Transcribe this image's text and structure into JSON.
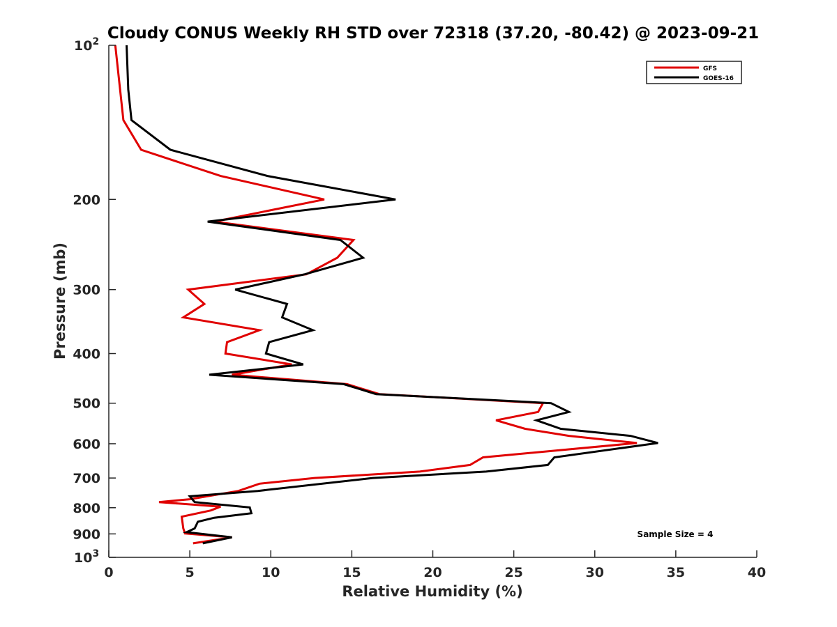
{
  "chart_data": {
    "type": "line",
    "title": "Cloudy CONUS Weekly RH STD over 72318 (37.20, -80.42) @ 2023-09-21",
    "xlabel": "Relative Humidity (%)",
    "ylabel": "Pressure (mb)",
    "xlim": [
      0,
      40
    ],
    "ylim": [
      100,
      1000
    ],
    "yscale": "log",
    "yreversed": true,
    "grid": false,
    "x_ticks": [
      0,
      5,
      10,
      15,
      20,
      25,
      30,
      35,
      40
    ],
    "x_tick_labels": [
      "0",
      "5",
      "10",
      "15",
      "20",
      "25",
      "30",
      "35",
      "40"
    ],
    "y_ticks": [
      100,
      200,
      300,
      400,
      500,
      600,
      700,
      800,
      900,
      1000
    ],
    "y_tick_labels": [
      {
        "base": "10",
        "exp": "2"
      },
      {
        "base": "200",
        "exp": ""
      },
      {
        "base": "300",
        "exp": ""
      },
      {
        "base": "400",
        "exp": ""
      },
      {
        "base": "500",
        "exp": ""
      },
      {
        "base": "600",
        "exp": ""
      },
      {
        "base": "700",
        "exp": ""
      },
      {
        "base": "800",
        "exp": ""
      },
      {
        "base": "900",
        "exp": ""
      },
      {
        "base": "10",
        "exp": "3"
      }
    ],
    "legend": {
      "position": "top-right",
      "entries": [
        {
          "name": "GFS",
          "color": "#e00000"
        },
        {
          "name": "GOES-16",
          "color": "#000000"
        }
      ]
    },
    "annotation": "Sample Size = 4",
    "series": [
      {
        "name": "GFS",
        "color": "#e00000",
        "points": [
          [
            0.4,
            100
          ],
          [
            0.9,
            140
          ],
          [
            2.0,
            160
          ],
          [
            6.9,
            180
          ],
          [
            13.3,
            200
          ],
          [
            6.5,
            221
          ],
          [
            15.1,
            240
          ],
          [
            14.1,
            260
          ],
          [
            12.2,
            280
          ],
          [
            4.9,
            300
          ],
          [
            5.9,
            320
          ],
          [
            4.6,
            340
          ],
          [
            9.3,
            360
          ],
          [
            7.3,
            380
          ],
          [
            7.2,
            400
          ],
          [
            11.3,
            420
          ],
          [
            7.6,
            440
          ],
          [
            14.7,
            459
          ],
          [
            16.7,
            480
          ],
          [
            26.8,
            500
          ],
          [
            26.5,
            520
          ],
          [
            23.9,
            540
          ],
          [
            25.7,
            561
          ],
          [
            28.4,
            579
          ],
          [
            32.6,
            598
          ],
          [
            23.1,
            638
          ],
          [
            22.3,
            660
          ],
          [
            19.2,
            680
          ],
          [
            12.7,
            700
          ],
          [
            9.3,
            718
          ],
          [
            8.0,
            742
          ],
          [
            5.0,
            770
          ],
          [
            3.1,
            780
          ],
          [
            6.9,
            796
          ],
          [
            6.3,
            810
          ],
          [
            4.5,
            833
          ],
          [
            4.6,
            878
          ],
          [
            4.7,
            898
          ],
          [
            7.6,
            914
          ],
          [
            5.2,
            939
          ]
        ]
      },
      {
        "name": "GOES-16",
        "color": "#000000",
        "points": [
          [
            1.1,
            100
          ],
          [
            1.2,
            122
          ],
          [
            1.4,
            140
          ],
          [
            3.8,
            160
          ],
          [
            9.8,
            180
          ],
          [
            17.7,
            200
          ],
          [
            6.1,
            221
          ],
          [
            14.3,
            240
          ],
          [
            15.7,
            260
          ],
          [
            12.1,
            280
          ],
          [
            7.8,
            300
          ],
          [
            11.0,
            320
          ],
          [
            10.7,
            340
          ],
          [
            12.6,
            360
          ],
          [
            9.9,
            380
          ],
          [
            9.7,
            400
          ],
          [
            12.0,
            420
          ],
          [
            6.2,
            440
          ],
          [
            14.5,
            459
          ],
          [
            16.5,
            480
          ],
          [
            27.3,
            500
          ],
          [
            28.4,
            520
          ],
          [
            26.4,
            540
          ],
          [
            27.9,
            561
          ],
          [
            32.2,
            579
          ],
          [
            33.9,
            598
          ],
          [
            27.5,
            638
          ],
          [
            27.1,
            660
          ],
          [
            23.3,
            680
          ],
          [
            16.3,
            700
          ],
          [
            9.2,
            742
          ],
          [
            5.0,
            760
          ],
          [
            5.3,
            780
          ],
          [
            8.7,
            799
          ],
          [
            8.8,
            820
          ],
          [
            6.5,
            837
          ],
          [
            5.5,
            852
          ],
          [
            5.3,
            878
          ],
          [
            4.8,
            893
          ],
          [
            7.6,
            914
          ],
          [
            5.8,
            939
          ]
        ]
      }
    ]
  }
}
